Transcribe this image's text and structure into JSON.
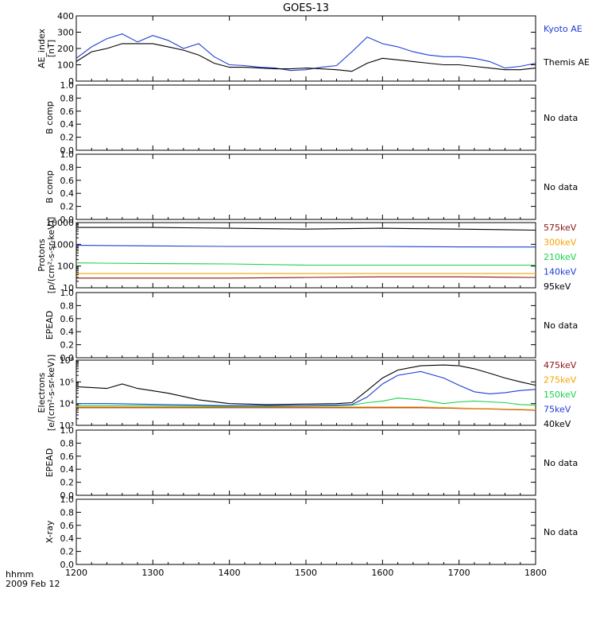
{
  "title": "GOES-13",
  "footer": {
    "line1": "hhmm",
    "line2": "2009 Feb 12"
  },
  "x_axis": {
    "range": [
      1200,
      1800
    ],
    "ticks": [
      "1200",
      "1300",
      "1400",
      "1500",
      "1600",
      "1700",
      "1800"
    ]
  },
  "colors": {
    "black": "#000000",
    "blue": "#1e3cd6",
    "orange": "#f5a300",
    "green": "#19d24a",
    "darkred": "#8c1414"
  },
  "chart_data": [
    {
      "type": "line",
      "ylabel": [
        "AE_index",
        "[nT]"
      ],
      "ylim": [
        0,
        400
      ],
      "yticks": [
        "0",
        "100",
        "200",
        "300",
        "400"
      ],
      "x": [
        1200,
        1220,
        1240,
        1260,
        1280,
        1300,
        1320,
        1340,
        1360,
        1380,
        1400,
        1420,
        1440,
        1460,
        1480,
        1500,
        1520,
        1540,
        1560,
        1580,
        1600,
        1620,
        1640,
        1660,
        1680,
        1700,
        1720,
        1740,
        1760,
        1780,
        1800
      ],
      "series": [
        {
          "name": "Kyoto AE",
          "color_key": "blue",
          "values": [
            140,
            210,
            260,
            290,
            240,
            280,
            250,
            200,
            230,
            150,
            100,
            95,
            85,
            80,
            65,
            70,
            85,
            95,
            180,
            270,
            230,
            210,
            180,
            160,
            150,
            150,
            140,
            120,
            80,
            90,
            110
          ]
        },
        {
          "name": "Themis AE",
          "color_key": "black",
          "values": [
            120,
            180,
            200,
            230,
            230,
            230,
            210,
            190,
            160,
            110,
            85,
            85,
            80,
            75,
            75,
            80,
            75,
            70,
            60,
            110,
            140,
            130,
            120,
            110,
            100,
            100,
            90,
            80,
            70,
            70,
            80
          ]
        }
      ]
    },
    {
      "type": "line",
      "ylabel": [
        "B comp"
      ],
      "ylim": [
        0,
        1
      ],
      "yticks": [
        "0.0",
        "0.2",
        "0.4",
        "0.6",
        "0.8",
        "1.0"
      ],
      "note": "No data",
      "series": []
    },
    {
      "type": "line",
      "ylabel": [
        "B comp"
      ],
      "ylim": [
        0,
        1
      ],
      "yticks": [
        "0.0",
        "0.2",
        "0.4",
        "0.6",
        "0.8",
        "1.0"
      ],
      "note": "No data",
      "series": []
    },
    {
      "type": "line",
      "scale": "log",
      "ylabel": [
        "Protons",
        "[p/(cm²-s-sr-keV)]"
      ],
      "ylim": [
        10,
        10000
      ],
      "yticks": [
        "10",
        "100",
        "1000",
        "10000"
      ],
      "x": [
        1200,
        1300,
        1400,
        1500,
        1600,
        1700,
        1800
      ],
      "series": [
        {
          "name": "575keV",
          "color_key": "darkred",
          "values": [
            28,
            28,
            28,
            30,
            32,
            32,
            30
          ]
        },
        {
          "name": "300keV",
          "color_key": "orange",
          "values": [
            45,
            45,
            45,
            45,
            45,
            45,
            45
          ]
        },
        {
          "name": "210keV",
          "color_key": "green",
          "values": [
            140,
            130,
            125,
            110,
            110,
            110,
            110
          ]
        },
        {
          "name": "140keV",
          "color_key": "blue",
          "values": [
            900,
            850,
            800,
            800,
            800,
            760,
            750
          ]
        },
        {
          "name": "95keV",
          "color_key": "black",
          "values": [
            6000,
            6000,
            5500,
            5000,
            5500,
            5000,
            4500
          ]
        }
      ]
    },
    {
      "type": "line",
      "ylabel": [
        "EPEAD"
      ],
      "ylim": [
        0,
        1
      ],
      "yticks": [
        "0.0",
        "0.2",
        "0.4",
        "0.6",
        "0.8",
        "1.0"
      ],
      "note": "No data",
      "series": []
    },
    {
      "type": "line",
      "scale": "log",
      "ylabel": [
        "Electrons",
        "[e/(cm²-s-sr-keV)]"
      ],
      "ylim": [
        1000,
        1000000
      ],
      "yticks": [
        "10³",
        "10⁴",
        "10⁵",
        "10⁶"
      ],
      "x": [
        1200,
        1240,
        1260,
        1280,
        1320,
        1360,
        1400,
        1450,
        1500,
        1540,
        1560,
        1580,
        1600,
        1620,
        1650,
        1680,
        1700,
        1720,
        1740,
        1760,
        1780,
        1800
      ],
      "series": [
        {
          "name": "475keV",
          "color_key": "darkred",
          "values": [
            6500,
            6500,
            6500,
            6500,
            6500,
            6500,
            6500,
            6500,
            6500,
            6500,
            6500,
            6500,
            6500,
            6500,
            6500,
            6300,
            6000,
            5800,
            5600,
            5400,
            5200,
            5000
          ]
        },
        {
          "name": "275keV",
          "color_key": "orange",
          "values": [
            7000,
            7000,
            7000,
            7000,
            7000,
            7000,
            7000,
            7000,
            7000,
            7000,
            7000,
            7000,
            7000,
            7000,
            7000,
            6600,
            6300,
            6000,
            5800,
            5600,
            5400,
            5200
          ]
        },
        {
          "name": "150keV",
          "color_key": "green",
          "values": [
            8000,
            8000,
            8000,
            8000,
            7800,
            7600,
            7500,
            7500,
            7800,
            8000,
            8500,
            11000,
            13000,
            18000,
            15000,
            10000,
            12000,
            13000,
            12000,
            11000,
            9000,
            8500
          ]
        },
        {
          "name": "75keV",
          "color_key": "blue",
          "values": [
            10000,
            10000,
            9800,
            9500,
            9000,
            8500,
            8000,
            8000,
            8000,
            8500,
            9000,
            20000,
            80000,
            200000,
            300000,
            150000,
            70000,
            35000,
            28000,
            32000,
            40000,
            45000
          ]
        },
        {
          "name": "40keV",
          "color_key": "black",
          "values": [
            60000,
            50000,
            80000,
            50000,
            30000,
            15000,
            10000,
            9000,
            9500,
            10000,
            11000,
            40000,
            150000,
            350000,
            550000,
            600000,
            550000,
            400000,
            250000,
            150000,
            100000,
            70000
          ]
        }
      ]
    },
    {
      "type": "line",
      "ylabel": [
        "EPEAD"
      ],
      "ylim": [
        0,
        1
      ],
      "yticks": [
        "0.0",
        "0.2",
        "0.4",
        "0.6",
        "0.8",
        "1.0"
      ],
      "note": "No data",
      "series": []
    },
    {
      "type": "line",
      "ylabel": [
        "X-ray"
      ],
      "ylim": [
        0,
        1
      ],
      "yticks": [
        "0.0",
        "0.2",
        "0.4",
        "0.6",
        "0.8",
        "1.0"
      ],
      "note": "No data",
      "series": []
    }
  ]
}
